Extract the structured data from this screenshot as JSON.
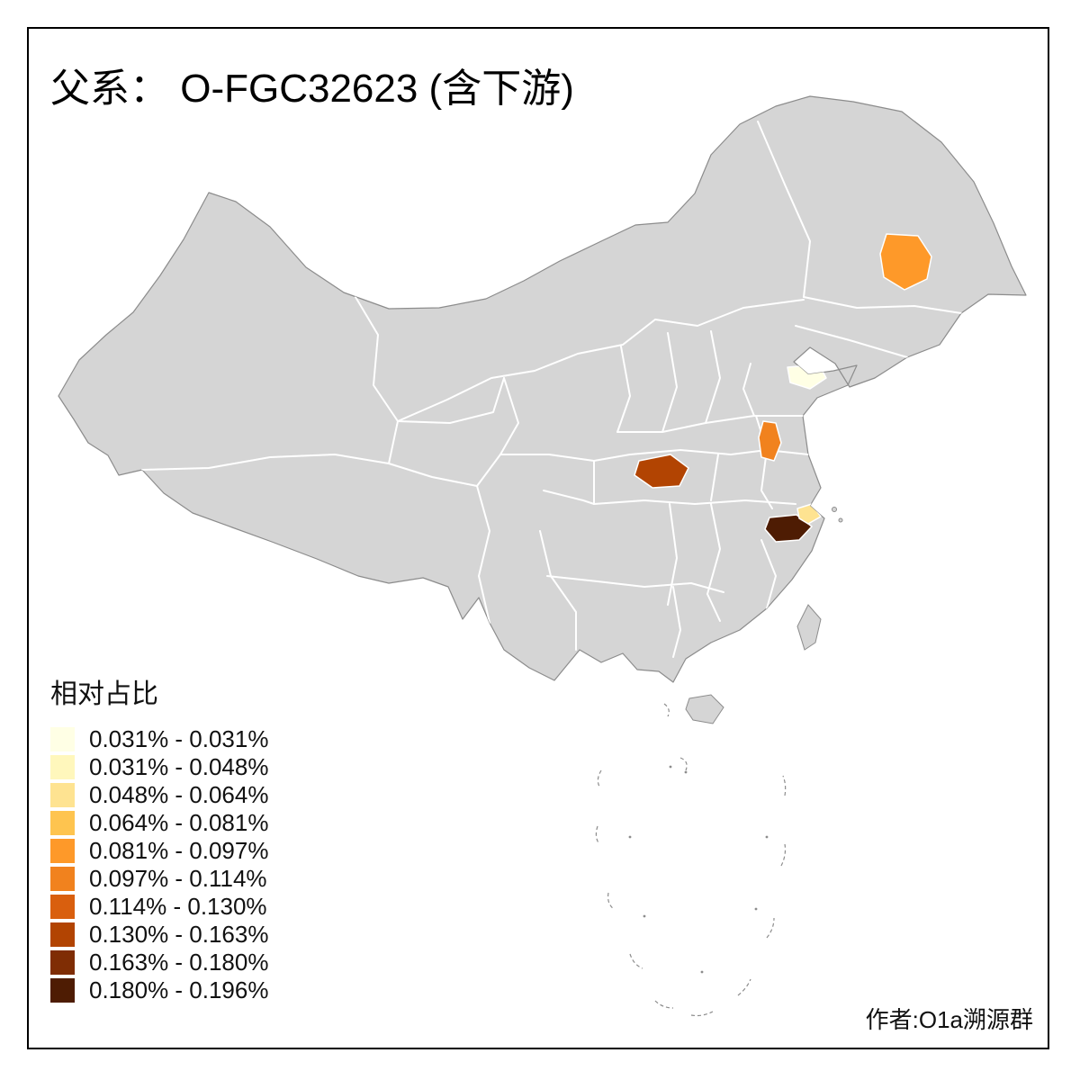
{
  "title": "父系： O-FGC32623 (含下游)",
  "author": "作者:O1a溯源群",
  "legend": {
    "title": "相对占比",
    "items": [
      {
        "label": "0.031% - 0.031%",
        "color": "#FFFFE5"
      },
      {
        "label": "0.031% - 0.048%",
        "color": "#FFF7BC"
      },
      {
        "label": "0.048% - 0.064%",
        "color": "#FEE391"
      },
      {
        "label": "0.064% - 0.081%",
        "color": "#FEC44F"
      },
      {
        "label": "0.081% - 0.097%",
        "color": "#FE9929"
      },
      {
        "label": "0.097% - 0.114%",
        "color": "#F1821E"
      },
      {
        "label": "0.114% - 0.130%",
        "color": "#D95F0E"
      },
      {
        "label": "0.130% - 0.163%",
        "color": "#B24402"
      },
      {
        "label": "0.163% - 0.180%",
        "color": "#7F2D04"
      },
      {
        "label": "0.180% - 0.196%",
        "color": "#4E1C03"
      }
    ]
  },
  "map": {
    "base_fill": "#D5D5D5",
    "province_border": "#FFFFFF",
    "outline": "#8C8C8C",
    "regions": [
      {
        "name": "northeast-highlight",
        "value_class": "0.081% - 0.097%",
        "color": "#FE9929"
      },
      {
        "name": "shandong-highlight",
        "value_class": "0.031% - 0.031%",
        "color": "#FFFFE5"
      },
      {
        "name": "jiangsu-highlight",
        "value_class": "0.097% - 0.114%",
        "color": "#F1821E"
      },
      {
        "name": "hubei-highlight",
        "value_class": "0.130% - 0.163%",
        "color": "#B24402"
      },
      {
        "name": "zhejiang-dark-highlight",
        "value_class": "0.180% - 0.196%",
        "color": "#4E1C03"
      },
      {
        "name": "zhejiang-pale-highlight",
        "value_class": "0.048% - 0.064%",
        "color": "#FEE391"
      }
    ]
  }
}
